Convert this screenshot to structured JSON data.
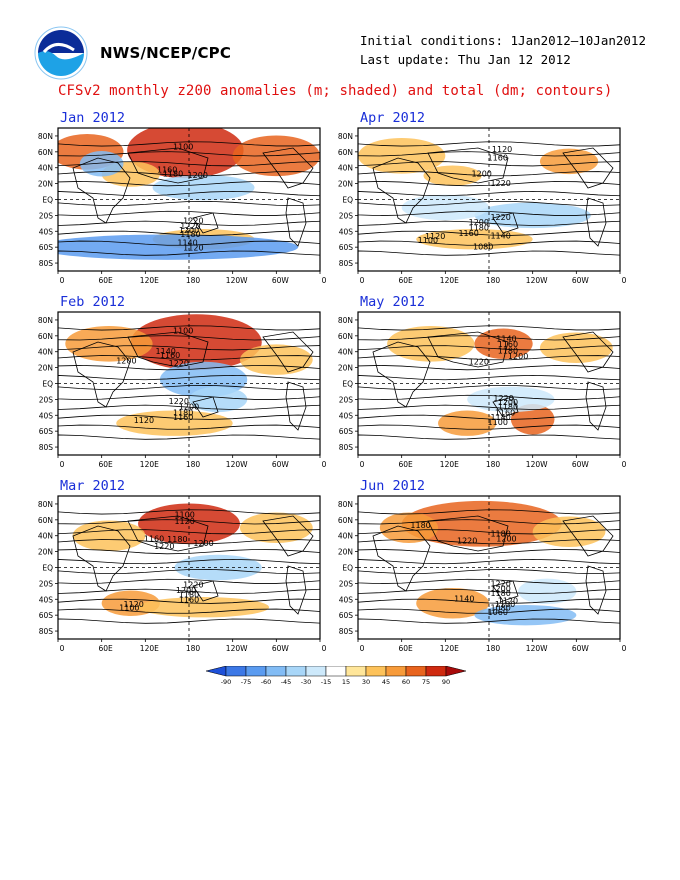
{
  "header": {
    "org": "NWS/NCEP/CPC",
    "initial_conditions": "Initial conditions: 1Jan2012—10Jan2012",
    "last_update": "Last update: Thu Jan 12 2012",
    "logo_icon": "noaa-logo"
  },
  "title": "CFSv2 monthly z200 anomalies (m; shaded) and total (dm; contours)",
  "axes": {
    "lat_labels": [
      "80N",
      "60N",
      "40N",
      "20N",
      "EQ",
      "20S",
      "40S",
      "60S",
      "80S"
    ],
    "lon_labels": [
      "0",
      "60E",
      "120E",
      "180",
      "120W",
      "60W",
      "0"
    ]
  },
  "panels": [
    {
      "id": "jan",
      "title": "Jan 2012",
      "contours": [
        {
          "text": "1100",
          "lon": 172,
          "lat": 63
        },
        {
          "text": "1160",
          "lon": 150,
          "lat": 34
        },
        {
          "text": "1180",
          "lon": 158,
          "lat": 29
        },
        {
          "text": "1200",
          "lon": 192,
          "lat": 27
        },
        {
          "text": "1220",
          "lon": 186,
          "lat": -30
        },
        {
          "text": "1220",
          "lon": 182,
          "lat": -37
        },
        {
          "text": "1200",
          "lon": 180,
          "lat": -42
        },
        {
          "text": "1180",
          "lon": 182,
          "lat": -47
        },
        {
          "text": "1140",
          "lon": 178,
          "lat": -58
        },
        {
          "text": "1120",
          "lon": 186,
          "lat": -64
        }
      ]
    },
    {
      "id": "apr",
      "title": "Apr 2012",
      "contours": [
        {
          "text": "1120",
          "lon": 198,
          "lat": 60
        },
        {
          "text": "1160",
          "lon": 192,
          "lat": 49
        },
        {
          "text": "1200",
          "lon": 170,
          "lat": 29
        },
        {
          "text": "1220",
          "lon": 196,
          "lat": 17
        },
        {
          "text": "1220",
          "lon": 196,
          "lat": -26
        },
        {
          "text": "1200",
          "lon": 166,
          "lat": -32
        },
        {
          "text": "1180",
          "lon": 166,
          "lat": -39
        },
        {
          "text": "1160",
          "lon": 152,
          "lat": -46
        },
        {
          "text": "1140",
          "lon": 196,
          "lat": -49
        },
        {
          "text": "1120",
          "lon": 106,
          "lat": -50
        },
        {
          "text": "1100",
          "lon": 96,
          "lat": -55
        },
        {
          "text": "1080",
          "lon": 172,
          "lat": -63
        }
      ]
    },
    {
      "id": "feb",
      "title": "Feb 2012",
      "contours": [
        {
          "text": "1100",
          "lon": 172,
          "lat": 63
        },
        {
          "text": "1140",
          "lon": 148,
          "lat": 37
        },
        {
          "text": "1160",
          "lon": 154,
          "lat": 32
        },
        {
          "text": "1200",
          "lon": 94,
          "lat": 25
        },
        {
          "text": "1220",
          "lon": 166,
          "lat": 22
        },
        {
          "text": "1220",
          "lon": 166,
          "lat": -26
        },
        {
          "text": "1200",
          "lon": 180,
          "lat": -33
        },
        {
          "text": "1180",
          "lon": 172,
          "lat": -40
        },
        {
          "text": "1160",
          "lon": 172,
          "lat": -46
        },
        {
          "text": "1120",
          "lon": 118,
          "lat": -50
        }
      ]
    },
    {
      "id": "may",
      "title": "May 2012",
      "contours": [
        {
          "text": "1140",
          "lon": 204,
          "lat": 53
        },
        {
          "text": "1160",
          "lon": 206,
          "lat": 46
        },
        {
          "text": "1180",
          "lon": 206,
          "lat": 38
        },
        {
          "text": "1200",
          "lon": 220,
          "lat": 31
        },
        {
          "text": "1220",
          "lon": 166,
          "lat": 24
        },
        {
          "text": "1220",
          "lon": 200,
          "lat": -22
        },
        {
          "text": "1200",
          "lon": 206,
          "lat": -27
        },
        {
          "text": "1180",
          "lon": 206,
          "lat": -33
        },
        {
          "text": "1160",
          "lon": 202,
          "lat": -40
        },
        {
          "text": "1140",
          "lon": 196,
          "lat": -46
        },
        {
          "text": "1100",
          "lon": 192,
          "lat": -52
        }
      ]
    },
    {
      "id": "mar",
      "title": "Mar 2012",
      "contours": [
        {
          "text": "1100",
          "lon": 174,
          "lat": 63
        },
        {
          "text": "1120",
          "lon": 174,
          "lat": 55
        },
        {
          "text": "1160",
          "lon": 132,
          "lat": 33
        },
        {
          "text": "1180",
          "lon": 164,
          "lat": 32
        },
        {
          "text": "1200",
          "lon": 200,
          "lat": 27
        },
        {
          "text": "1220",
          "lon": 146,
          "lat": 23
        },
        {
          "text": "1220",
          "lon": 186,
          "lat": -25
        },
        {
          "text": "1200",
          "lon": 176,
          "lat": -32
        },
        {
          "text": "1180",
          "lon": 180,
          "lat": -38
        },
        {
          "text": "1160",
          "lon": 180,
          "lat": -44
        },
        {
          "text": "1120",
          "lon": 104,
          "lat": -50
        },
        {
          "text": "1100",
          "lon": 98,
          "lat": -54
        }
      ]
    },
    {
      "id": "jun",
      "title": "Jun 2012",
      "contours": [
        {
          "text": "1180",
          "lon": 86,
          "lat": 50
        },
        {
          "text": "1180",
          "lon": 196,
          "lat": 39
        },
        {
          "text": "1200",
          "lon": 204,
          "lat": 33
        },
        {
          "text": "1220",
          "lon": 150,
          "lat": 30
        },
        {
          "text": "1220",
          "lon": 196,
          "lat": -24
        },
        {
          "text": "1200",
          "lon": 196,
          "lat": -30
        },
        {
          "text": "1180",
          "lon": 196,
          "lat": -36
        },
        {
          "text": "1140",
          "lon": 146,
          "lat": -43
        },
        {
          "text": "1120",
          "lon": 206,
          "lat": -45
        },
        {
          "text": "1100",
          "lon": 202,
          "lat": -50
        },
        {
          "text": "1080",
          "lon": 196,
          "lat": -54
        },
        {
          "text": "1060",
          "lon": 192,
          "lat": -60
        }
      ]
    }
  ],
  "colorbar": {
    "labels": [
      "-90",
      "-75",
      "-60",
      "-45",
      "-30",
      "-15",
      "15",
      "30",
      "45",
      "60",
      "75",
      "90"
    ],
    "colors": [
      "#1e50d8",
      "#3c78e6",
      "#5a9bf0",
      "#82bcf5",
      "#a8d6f8",
      "#cde9fb",
      "#ffffff",
      "#ffe69a",
      "#fdc25a",
      "#f79b3a",
      "#e8641e",
      "#cf2a10",
      "#a80a0a"
    ]
  }
}
